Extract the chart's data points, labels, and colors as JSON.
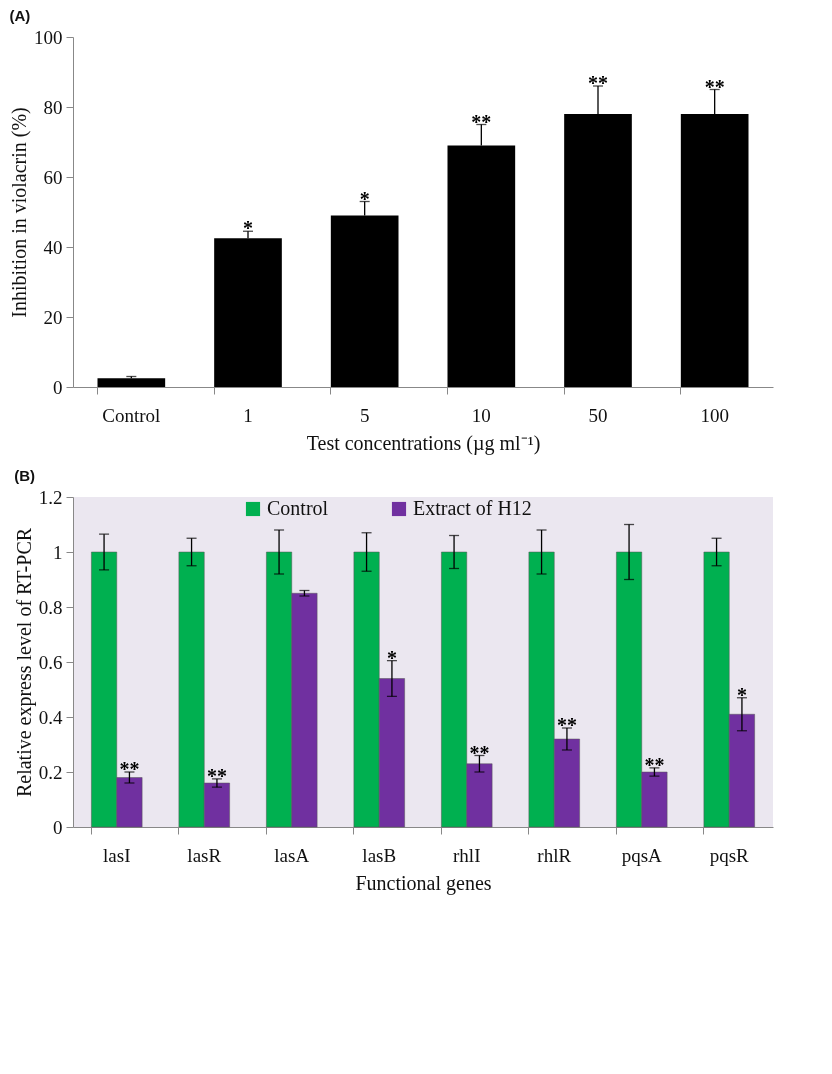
{
  "chart_data": [
    {
      "type": "bar",
      "title": "(A)",
      "xlabel": "Test concentrations (µg ml⁻¹)",
      "ylabel": "Inhibition in violacrin (%)",
      "categories": [
        "Control",
        "1",
        "5",
        "10",
        "50",
        "100"
      ],
      "values": [
        2.5,
        42.5,
        49,
        69,
        78,
        78
      ],
      "errors": [
        [
          2.5,
          3
        ],
        [
          42.5,
          44.5
        ],
        [
          49,
          53
        ],
        [
          69,
          75
        ],
        [
          78,
          86
        ],
        [
          78,
          85
        ]
      ],
      "color": "#000000",
      "ylim": [
        0,
        100
      ],
      "yticks": [
        0,
        20,
        40,
        60,
        80,
        100
      ],
      "annotations": [
        {
          "text": "*",
          "x": "1",
          "y": 44.5
        },
        {
          "text": "*",
          "x": "5",
          "y": 53
        },
        {
          "text": "**",
          "x": "10",
          "y": 75
        },
        {
          "text": "**",
          "x": "50",
          "y": 86
        },
        {
          "text": "**",
          "x": "100",
          "y": 85
        }
      ]
    },
    {
      "type": "bar",
      "title": "(B)",
      "xlabel": "Functional genes",
      "ylabel": "Relative express level of RT-PCR",
      "categories": [
        "lasI",
        "lasR",
        "lasA",
        "lasB",
        "rhlI",
        "rhlR",
        "pqsA",
        "pqsR"
      ],
      "series": [
        {
          "name": "Control",
          "color": "#00b050",
          "values": [
            1,
            1,
            1,
            1,
            1,
            1,
            1,
            1
          ],
          "errors": [
            0.065,
            0.05,
            0.08,
            0.07,
            0.06,
            0.08,
            0.1,
            0.05
          ]
        },
        {
          "name": "Extract of H12",
          "color": "#7030a0",
          "values": [
            0.18,
            0.16,
            0.85,
            0.54,
            0.23,
            0.32,
            0.2,
            0.41
          ],
          "errors": [
            0.02,
            0.015,
            0.01,
            0.065,
            0.03,
            0.04,
            0.015,
            0.06
          ]
        }
      ],
      "ylim": [
        0,
        1.2
      ],
      "yticks": [
        0,
        0.2,
        0.4,
        0.6,
        0.8,
        1,
        1.2
      ],
      "legend": "top",
      "annotations": [
        {
          "text": "**",
          "x": "lasI",
          "y": 0.2
        },
        {
          "text": "**",
          "x": "lasR",
          "y": 0.175
        },
        {
          "text": "*",
          "x": "lasB",
          "y": 0.605
        },
        {
          "text": "**",
          "x": "rhlI",
          "y": 0.26
        },
        {
          "text": "**",
          "x": "rhlR",
          "y": 0.36
        },
        {
          "text": "**",
          "x": "pqsA",
          "y": 0.215
        },
        {
          "text": "*",
          "x": "pqsR",
          "y": 0.47
        }
      ]
    }
  ]
}
